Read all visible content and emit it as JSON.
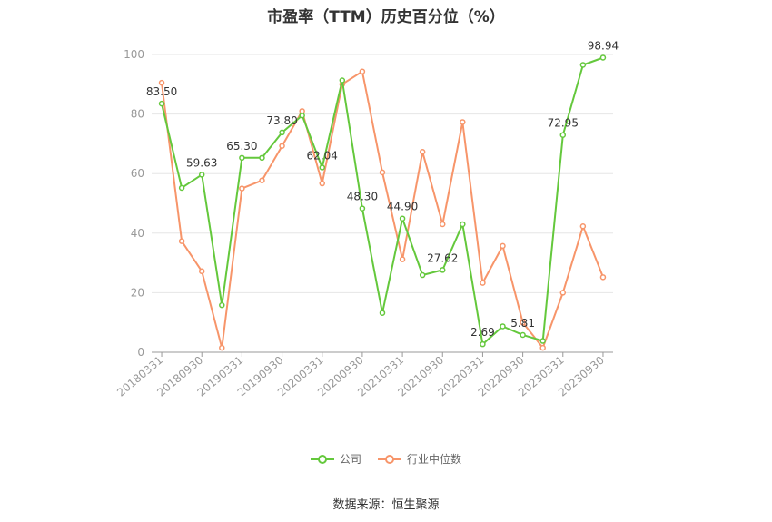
{
  "chart_title": "市盈率（TTM）历史百分位（%）",
  "source": "数据来源：恒生聚源",
  "colors": {
    "company": "#64c83c",
    "industry": "#f7956a",
    "axis": "#999999",
    "grid": "#e6e6e6",
    "label": "#333333"
  },
  "chart_data": {
    "type": "line",
    "title": "市盈率（TTM）历史百分位（%）",
    "xlabel": "",
    "ylabel": "",
    "ylim": [
      0,
      100
    ],
    "yticks": [
      0,
      20,
      40,
      60,
      80,
      100
    ],
    "grid": true,
    "legend_position": "bottom",
    "x": [
      "20180331",
      "20180630",
      "20180930",
      "20181231",
      "20190331",
      "20190630",
      "20190930",
      "20191231",
      "20200331",
      "20200630",
      "20200930",
      "20201231",
      "20210331",
      "20210630",
      "20210930",
      "20211231",
      "20220331",
      "20220630",
      "20220930",
      "20221231",
      "20230331",
      "20230630",
      "20230930"
    ],
    "xtick_labels": [
      "20180331",
      "20180930",
      "20190331",
      "20190930",
      "20200331",
      "20200930",
      "20210331",
      "20210930",
      "20220331",
      "20220930",
      "20230331",
      "20230930"
    ],
    "series": [
      {
        "name": "公司",
        "values": [
          83.5,
          55.2,
          59.63,
          15.8,
          65.3,
          65.3,
          73.8,
          79.5,
          62.04,
          91.3,
          48.3,
          13.2,
          44.9,
          25.9,
          27.62,
          43.0,
          2.69,
          8.7,
          5.81,
          3.8,
          72.95,
          96.5,
          98.94
        ]
      },
      {
        "name": "行业中位数",
        "values": [
          90.5,
          37.3,
          27.2,
          1.5,
          55.0,
          57.7,
          69.3,
          81.0,
          56.7,
          90.0,
          94.3,
          60.4,
          31.2,
          67.3,
          43.0,
          77.3,
          23.3,
          35.7,
          10.0,
          1.5,
          20.0,
          42.3,
          25.2
        ]
      }
    ],
    "data_labels": [
      {
        "series": 0,
        "index": 0,
        "text": "83.50"
      },
      {
        "series": 0,
        "index": 2,
        "text": "59.63"
      },
      {
        "series": 0,
        "index": 4,
        "text": "65.30"
      },
      {
        "series": 0,
        "index": 6,
        "text": "73.80"
      },
      {
        "series": 0,
        "index": 8,
        "text": "62.04"
      },
      {
        "series": 0,
        "index": 10,
        "text": "48.30"
      },
      {
        "series": 0,
        "index": 12,
        "text": "44.90"
      },
      {
        "series": 0,
        "index": 14,
        "text": "27.62"
      },
      {
        "series": 0,
        "index": 16,
        "text": "2.69"
      },
      {
        "series": 0,
        "index": 18,
        "text": "5.81"
      },
      {
        "series": 0,
        "index": 20,
        "text": "72.95"
      },
      {
        "series": 0,
        "index": 22,
        "text": "98.94"
      }
    ]
  }
}
